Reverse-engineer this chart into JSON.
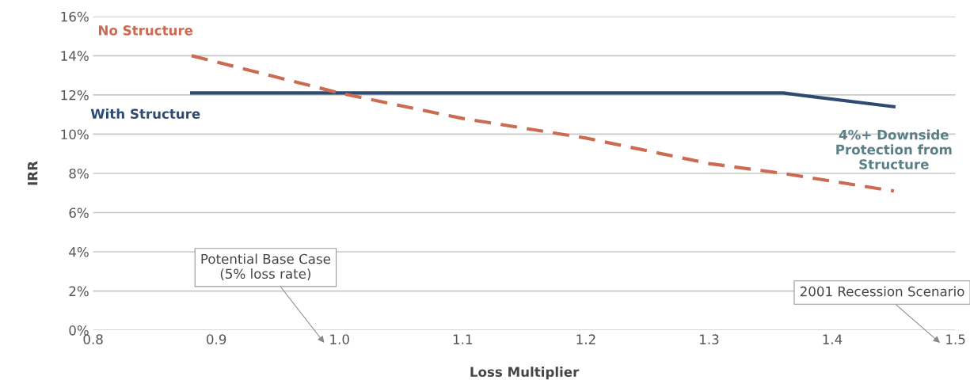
{
  "chart_data": {
    "type": "line",
    "xlabel": "Loss Multiplier",
    "ylabel": "IRR",
    "xlim": [
      0.8,
      1.5
    ],
    "xticks": [
      {
        "value": 0.8,
        "label": "0.8"
      },
      {
        "value": 0.9,
        "label": "0.9"
      },
      {
        "value": 1.0,
        "label": "1.0"
      },
      {
        "value": 1.1,
        "label": "1.1"
      },
      {
        "value": 1.2,
        "label": "1.2"
      },
      {
        "value": 1.3,
        "label": "1.3"
      },
      {
        "value": 1.4,
        "label": "1.4"
      },
      {
        "value": 1.5,
        "label": "1.5"
      }
    ],
    "ylim": [
      0,
      16
    ],
    "yticks": [
      {
        "value": 0,
        "label": "0%"
      },
      {
        "value": 2,
        "label": "2%"
      },
      {
        "value": 4,
        "label": "4%"
      },
      {
        "value": 6,
        "label": "6%"
      },
      {
        "value": 8,
        "label": "8%"
      },
      {
        "value": 10,
        "label": "10%"
      },
      {
        "value": 12,
        "label": "12%"
      },
      {
        "value": 14,
        "label": "14%"
      },
      {
        "value": 16,
        "label": "16%"
      }
    ],
    "grid": "y",
    "legend": false,
    "series": [
      {
        "name": "With Structure",
        "color": "#2e4a72",
        "line_style": "solid",
        "x": [
          0.88,
          1.36,
          1.45
        ],
        "values": [
          12.1,
          12.1,
          11.4
        ]
      },
      {
        "name": "No Structure",
        "color": "#cc6a52",
        "line_style": "dashed",
        "x": [
          0.88,
          1.0,
          1.1,
          1.2,
          1.3,
          1.36,
          1.45
        ],
        "values": [
          14.0,
          12.1,
          10.8,
          9.8,
          8.5,
          8.0,
          7.1
        ]
      }
    ],
    "annotations": [
      {
        "text": "4%+ Downside\nProtection from\nStructure",
        "x": 1.45,
        "y": 11.4
      },
      "Potential Base Case\n(5% loss rate)",
      "2001 Recession Scenario"
    ]
  }
}
